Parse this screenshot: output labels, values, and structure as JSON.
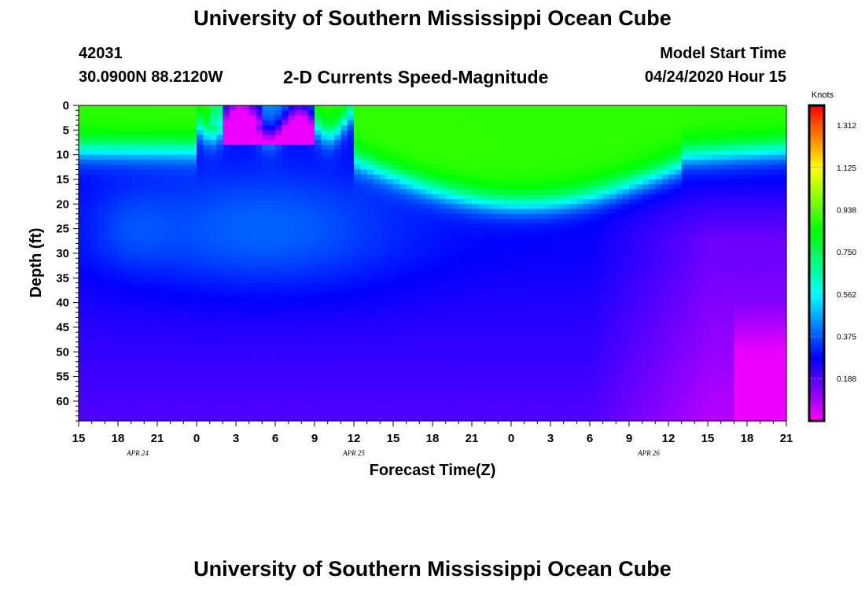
{
  "page_title": "University of Southern Mississippi Ocean Cube",
  "footer_title": "University of Southern Mississippi Ocean Cube",
  "station": {
    "id": "42031",
    "coords": "30.0900N 88.2120W"
  },
  "model": {
    "label": "Model Start Time",
    "time": "04/24/2020 Hour 15"
  },
  "chart_data": {
    "type": "heatmap",
    "title": "2-D Currents Speed-Magnitude",
    "xlabel": "Forecast Time(Z)",
    "ylabel": "Depth (ft)",
    "colorbar_label": "Knots",
    "x_range": [
      0,
      54
    ],
    "y_range": [
      0,
      64
    ],
    "x_ticks": [
      "15",
      "18",
      "21",
      "0",
      "3",
      "6",
      "9",
      "12",
      "15",
      "18",
      "21",
      "0",
      "3",
      "6",
      "9",
      "12",
      "15",
      "18",
      "21"
    ],
    "date_labels": [
      {
        "text": "APR 24",
        "at": 4.5
      },
      {
        "text": "APR 25",
        "at": 21
      },
      {
        "text": "APR 26",
        "at": 43.5
      }
    ],
    "y_ticks": [
      0,
      5,
      10,
      15,
      20,
      25,
      30,
      35,
      40,
      45,
      50,
      55,
      60
    ],
    "colorbar_ticks": [
      "1.312",
      "1.125",
      "0.938",
      "0.750",
      "0.562",
      "0.375",
      "0.188"
    ],
    "value_range": [
      0,
      1.4
    ],
    "colors": {
      "max": "#ff0000",
      "mid": "#00ff00",
      "min": "#ff00ff"
    },
    "grid": false
  }
}
